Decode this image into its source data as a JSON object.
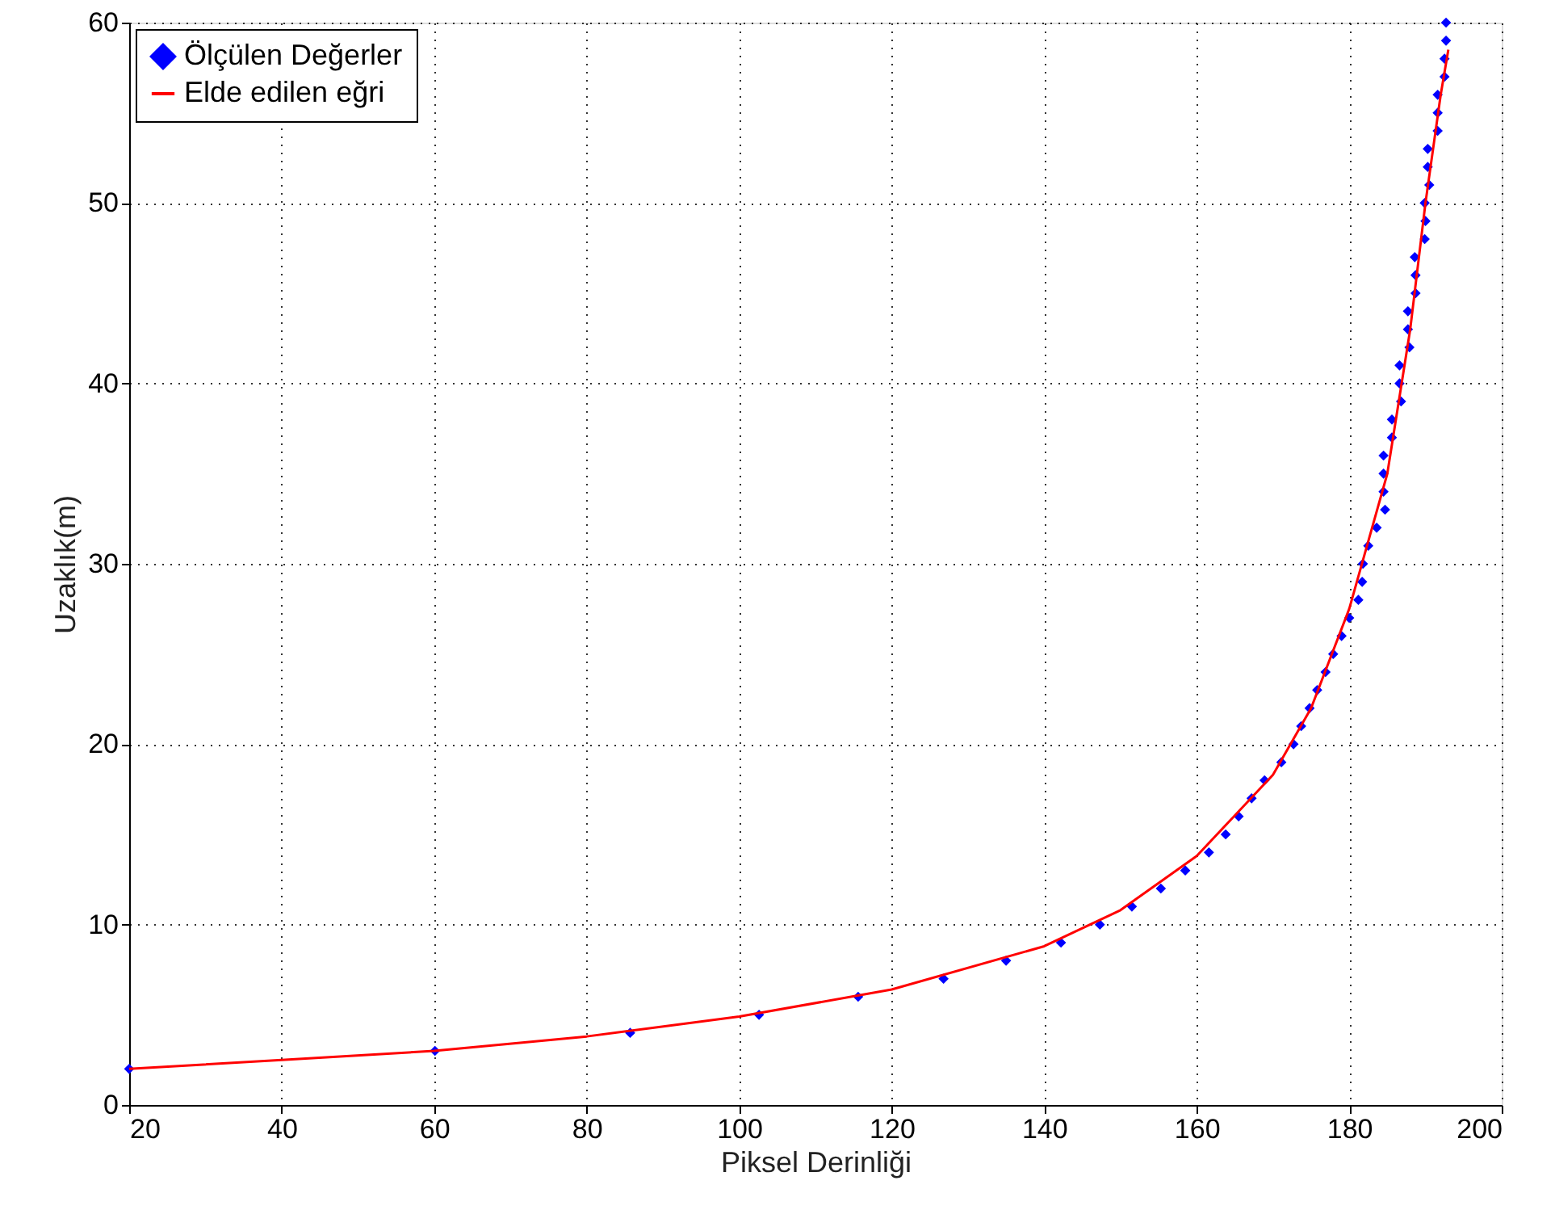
{
  "chart_data": {
    "type": "scatter",
    "xlabel": "Piksel Derinliği",
    "ylabel": "Uzaklık(m)",
    "xlim": [
      20,
      200
    ],
    "xticks": [
      20,
      40,
      60,
      80,
      100,
      120,
      140,
      160,
      180,
      200
    ],
    "ylim": [
      0,
      60
    ],
    "yticks": [
      0,
      10,
      20,
      30,
      40,
      50,
      60
    ],
    "grid": true,
    "legend": "top left",
    "series": [
      {
        "name": "Ölçülen Değerler",
        "color": "#0000ff",
        "marker": "diamond",
        "x": [
          20.0,
          60.1,
          85.7,
          102.6,
          115.6,
          126.8,
          135.0,
          142.2,
          147.3,
          151.5,
          155.3,
          158.5,
          161.6,
          163.8,
          165.5,
          167.2,
          168.9,
          171.1,
          172.7,
          173.7,
          174.8,
          175.8,
          176.9,
          177.9,
          179.0,
          180.0,
          181.2,
          181.7,
          181.8,
          182.5,
          183.6,
          184.7,
          184.5,
          184.5,
          184.5,
          185.6,
          185.6,
          186.8,
          186.6,
          186.6,
          187.9,
          187.7,
          187.7,
          188.7,
          188.7,
          188.6,
          189.9,
          190.0,
          189.9,
          190.5,
          190.3,
          190.3,
          191.6,
          191.6,
          191.6,
          192.5,
          192.5,
          192.7,
          192.7
        ],
        "values": [
          2,
          3,
          4,
          5,
          6,
          7,
          8,
          9,
          10,
          11,
          12,
          13,
          14,
          15,
          16,
          17,
          18,
          19,
          20,
          21,
          22,
          23,
          24,
          25,
          26,
          27,
          28,
          29,
          30,
          31,
          32,
          33,
          34,
          35,
          36,
          37,
          38,
          39,
          40,
          41,
          42,
          43,
          44,
          45,
          46,
          47,
          48,
          49,
          50,
          51,
          52,
          53,
          54,
          55,
          56,
          57,
          58,
          59,
          60
        ]
      },
      {
        "name": "Elde edilen eğri",
        "type": "line",
        "color": "#ff0000",
        "line_style": "solid",
        "x": [
          20,
          40,
          60,
          80,
          100,
          120,
          140,
          150,
          160,
          170,
          175,
          180,
          185,
          188,
          190,
          192,
          193
        ],
        "values": [
          2,
          2.5,
          3,
          3.8,
          4.9,
          6.4,
          8.8,
          10.8,
          13.8,
          18.3,
          22,
          27.5,
          35,
          43,
          50,
          56,
          58.5
        ]
      }
    ]
  }
}
